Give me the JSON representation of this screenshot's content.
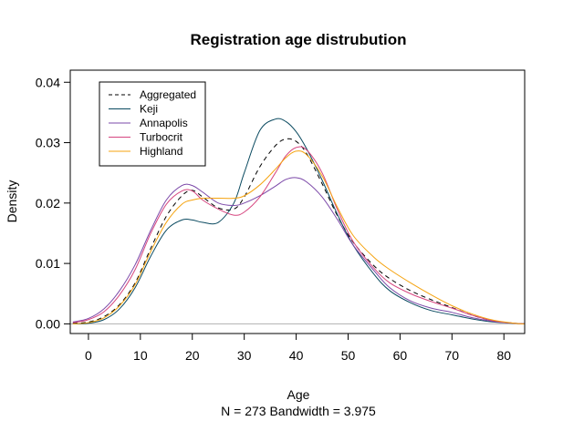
{
  "chart_data": {
    "type": "line",
    "title": "Registration age distrubution",
    "xlabel": "Age",
    "sub_label": "N = 273  Bandwidth = 3.975",
    "ylabel": "Density",
    "xlim": [
      -3.5,
      84
    ],
    "ylim": [
      -0.0016,
      0.042
    ],
    "x_ticks": [
      0,
      10,
      20,
      30,
      40,
      50,
      60,
      70,
      80
    ],
    "y_ticks": [
      0.0,
      0.01,
      0.02,
      0.03,
      0.04
    ],
    "y_tick_labels": [
      "0.00",
      "0.01",
      "0.02",
      "0.03",
      "0.04"
    ],
    "baseline": 0,
    "legend_position": "top-left",
    "x": [
      -3,
      0,
      3,
      6,
      9,
      12,
      15,
      18,
      20,
      22,
      25,
      28,
      30,
      33,
      36,
      38,
      40,
      42,
      45,
      48,
      51,
      55,
      58,
      62,
      66,
      70,
      74,
      78,
      82,
      84
    ],
    "series": [
      {
        "name": "Aggregated",
        "color": "#000000",
        "dash": "5,4",
        "values": [
          0.0001,
          0.0003,
          0.0012,
          0.0032,
          0.0068,
          0.0125,
          0.0178,
          0.0212,
          0.0221,
          0.021,
          0.0192,
          0.019,
          0.021,
          0.026,
          0.0295,
          0.0306,
          0.0302,
          0.0282,
          0.0232,
          0.0178,
          0.0135,
          0.0096,
          0.0075,
          0.0055,
          0.004,
          0.0027,
          0.0014,
          0.0005,
          0.0001,
          0.0
        ]
      },
      {
        "name": "Keji",
        "color": "#0a4a60",
        "dash": "",
        "values": [
          0.0,
          0.0001,
          0.0007,
          0.0025,
          0.006,
          0.0112,
          0.0155,
          0.0172,
          0.0172,
          0.0168,
          0.0168,
          0.02,
          0.025,
          0.032,
          0.0339,
          0.0335,
          0.0318,
          0.029,
          0.0238,
          0.018,
          0.013,
          0.0082,
          0.0055,
          0.0035,
          0.0022,
          0.0015,
          0.0008,
          0.0003,
          0.0001,
          0.0
        ]
      },
      {
        "name": "Annapolis",
        "color": "#7b48a8",
        "dash": "",
        "values": [
          0.0003,
          0.0009,
          0.0025,
          0.0055,
          0.0098,
          0.0155,
          0.0205,
          0.0229,
          0.0229,
          0.0218,
          0.02,
          0.0196,
          0.02,
          0.0212,
          0.0228,
          0.0239,
          0.0242,
          0.0235,
          0.021,
          0.0172,
          0.013,
          0.0088,
          0.006,
          0.0038,
          0.0026,
          0.0019,
          0.001,
          0.0004,
          0.0001,
          0.0
        ]
      },
      {
        "name": "Turbocrit",
        "color": "#d6457f",
        "dash": "",
        "values": [
          0.0002,
          0.0007,
          0.002,
          0.0048,
          0.009,
          0.015,
          0.0198,
          0.022,
          0.022,
          0.0205,
          0.019,
          0.018,
          0.0185,
          0.021,
          0.025,
          0.0278,
          0.0292,
          0.0288,
          0.025,
          0.0188,
          0.0136,
          0.0092,
          0.0068,
          0.005,
          0.0037,
          0.0026,
          0.0014,
          0.0005,
          0.0001,
          0.0
        ]
      },
      {
        "name": "Highland",
        "color": "#f5a30f",
        "dash": "",
        "values": [
          0.0,
          0.0002,
          0.001,
          0.003,
          0.0065,
          0.012,
          0.0168,
          0.0198,
          0.0205,
          0.0208,
          0.0208,
          0.0208,
          0.0212,
          0.023,
          0.0256,
          0.0275,
          0.0286,
          0.028,
          0.0245,
          0.0192,
          0.0146,
          0.011,
          0.009,
          0.0068,
          0.0048,
          0.003,
          0.0016,
          0.0006,
          0.0001,
          0.0
        ]
      }
    ]
  }
}
